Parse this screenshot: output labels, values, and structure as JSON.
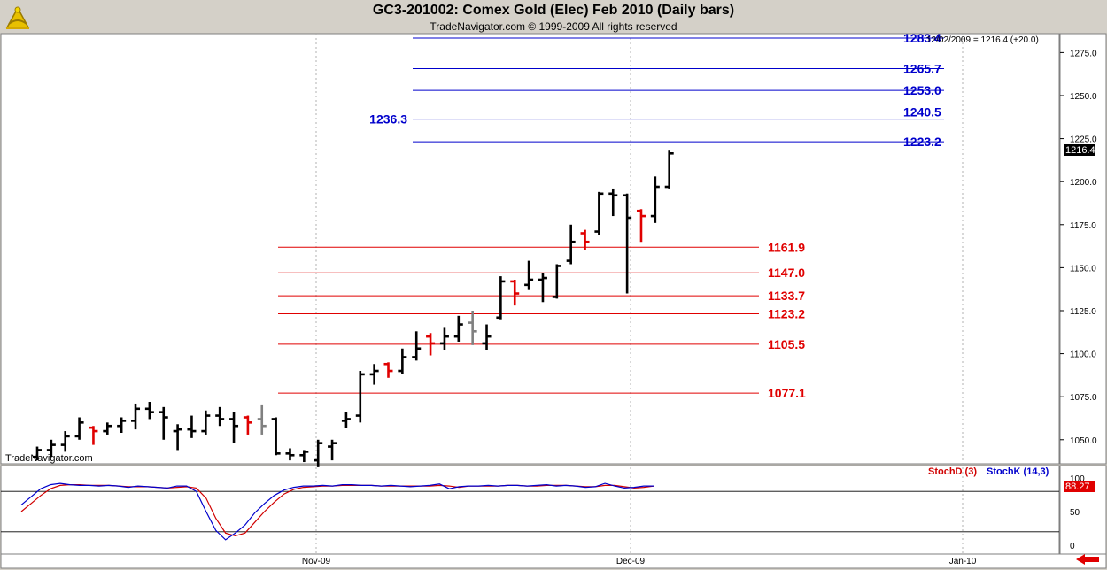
{
  "header": {
    "title": "GC3-201002:  Comex Gold (Elec) Feb 2010  (Daily bars)",
    "subtitle": "TradeNavigator.com © 1999-2009 All rights reserved"
  },
  "watermark": "TradeNavigator.com",
  "last_bar_info": "12/02/2009 = 1216.4 (+20.0)",
  "last_price_tag": "1216.4",
  "stoch": {
    "legend_d": "StochD (3)",
    "legend_k": "StochK (14,3)",
    "value_tag": "88.27",
    "levels": [
      80,
      20
    ],
    "y_ticks": [
      "100",
      "50",
      "0"
    ],
    "color_d": "#d00000",
    "color_k": "#0000cc"
  },
  "icons": {
    "logo": "sextant-icon",
    "scroll": "arrow-left-icon"
  },
  "chart_data": {
    "type": "bar",
    "subtype": "ohlc-daily",
    "title": "GC3-201002:  Comex Gold (Elec) Feb 2010  (Daily bars)",
    "x_labels": [
      "Nov-09",
      "Dec-09",
      "Jan-10"
    ],
    "y_ticks": [
      1050,
      1075,
      1100,
      1125,
      1150,
      1175,
      1200,
      1225,
      1250,
      1275
    ],
    "ylim": [
      1036,
      1286
    ],
    "last_close": 1216.4,
    "resistance_levels": [
      {
        "value": 1283.4,
        "label": "1283.4"
      },
      {
        "value": 1265.7,
        "label": "1265.7"
      },
      {
        "value": 1253.0,
        "label": "1253.0"
      },
      {
        "value": 1240.5,
        "label": "1240.5"
      },
      {
        "value": 1236.3,
        "label": "1236.3"
      },
      {
        "value": 1223.2,
        "label": "1223.2"
      }
    ],
    "support_levels": [
      {
        "value": 1161.9,
        "label": "1161.9"
      },
      {
        "value": 1147.0,
        "label": "1147.0"
      },
      {
        "value": 1133.7,
        "label": "1133.7"
      },
      {
        "value": 1123.2,
        "label": "1123.2"
      },
      {
        "value": 1105.5,
        "label": "1105.5"
      },
      {
        "value": 1077.1,
        "label": "1077.1"
      }
    ],
    "bars": [
      {
        "o": 1040,
        "h": 1046,
        "l": 1038,
        "c": 1044,
        "col": "black"
      },
      {
        "o": 1044,
        "h": 1050,
        "l": 1040,
        "c": 1047,
        "col": "black"
      },
      {
        "o": 1047,
        "h": 1055,
        "l": 1043,
        "c": 1052,
        "col": "black"
      },
      {
        "o": 1052,
        "h": 1063,
        "l": 1050,
        "c": 1060,
        "col": "black"
      },
      {
        "o": 1057,
        "h": 1058,
        "l": 1047,
        "c": 1055,
        "col": "red"
      },
      {
        "o": 1055,
        "h": 1060,
        "l": 1053,
        "c": 1058,
        "col": "black"
      },
      {
        "o": 1058,
        "h": 1063,
        "l": 1054,
        "c": 1061,
        "col": "black"
      },
      {
        "o": 1061,
        "h": 1071,
        "l": 1056,
        "c": 1068,
        "col": "black"
      },
      {
        "o": 1068,
        "h": 1072,
        "l": 1062,
        "c": 1066,
        "col": "black"
      },
      {
        "o": 1066,
        "h": 1069,
        "l": 1050,
        "c": 1063,
        "col": "black"
      },
      {
        "o": 1055,
        "h": 1059,
        "l": 1044,
        "c": 1056,
        "col": "black"
      },
      {
        "o": 1056,
        "h": 1064,
        "l": 1051,
        "c": 1055,
        "col": "black"
      },
      {
        "o": 1055,
        "h": 1067,
        "l": 1053,
        "c": 1064,
        "col": "black"
      },
      {
        "o": 1064,
        "h": 1069,
        "l": 1058,
        "c": 1062,
        "col": "black"
      },
      {
        "o": 1062,
        "h": 1066,
        "l": 1048,
        "c": 1058,
        "col": "black"
      },
      {
        "o": 1063,
        "h": 1064,
        "l": 1053,
        "c": 1060,
        "col": "red"
      },
      {
        "o": 1062,
        "h": 1070,
        "l": 1053,
        "c": 1058,
        "col": "gray"
      },
      {
        "o": 1062,
        "h": 1063,
        "l": 1041,
        "c": 1042,
        "col": "black"
      },
      {
        "o": 1042,
        "h": 1045,
        "l": 1038,
        "c": 1041,
        "col": "black"
      },
      {
        "o": 1041,
        "h": 1044,
        "l": 1037,
        "c": 1043,
        "col": "black"
      },
      {
        "o": 1038,
        "h": 1050,
        "l": 1034,
        "c": 1048,
        "col": "black"
      },
      {
        "o": 1046,
        "h": 1050,
        "l": 1038,
        "c": 1048,
        "col": "black"
      },
      {
        "o": 1061,
        "h": 1066,
        "l": 1057,
        "c": 1062,
        "col": "black"
      },
      {
        "o": 1064,
        "h": 1090,
        "l": 1060,
        "c": 1088,
        "col": "black"
      },
      {
        "o": 1088,
        "h": 1094,
        "l": 1082,
        "c": 1090,
        "col": "black"
      },
      {
        "o": 1094,
        "h": 1095,
        "l": 1086,
        "c": 1090,
        "col": "red"
      },
      {
        "o": 1090,
        "h": 1103,
        "l": 1088,
        "c": 1098,
        "col": "black"
      },
      {
        "o": 1098,
        "h": 1113,
        "l": 1096,
        "c": 1103,
        "col": "black"
      },
      {
        "o": 1110,
        "h": 1112,
        "l": 1099,
        "c": 1106,
        "col": "red"
      },
      {
        "o": 1106,
        "h": 1115,
        "l": 1102,
        "c": 1110,
        "col": "black"
      },
      {
        "o": 1110,
        "h": 1122,
        "l": 1107,
        "c": 1117,
        "col": "black"
      },
      {
        "o": 1118,
        "h": 1125,
        "l": 1105,
        "c": 1113,
        "col": "gray"
      },
      {
        "o": 1106,
        "h": 1117,
        "l": 1102,
        "c": 1110,
        "col": "black"
      },
      {
        "o": 1121,
        "h": 1145,
        "l": 1120,
        "c": 1142,
        "col": "black"
      },
      {
        "o": 1142,
        "h": 1143,
        "l": 1128,
        "c": 1135,
        "col": "red"
      },
      {
        "o": 1140,
        "h": 1154,
        "l": 1137,
        "c": 1143,
        "col": "black"
      },
      {
        "o": 1143,
        "h": 1147,
        "l": 1130,
        "c": 1144,
        "col": "black"
      },
      {
        "o": 1133,
        "h": 1152,
        "l": 1132,
        "c": 1151,
        "col": "black"
      },
      {
        "o": 1154,
        "h": 1175,
        "l": 1152,
        "c": 1165,
        "col": "black"
      },
      {
        "o": 1170,
        "h": 1172,
        "l": 1160,
        "c": 1165,
        "col": "red"
      },
      {
        "o": 1171,
        "h": 1194,
        "l": 1169,
        "c": 1193,
        "col": "black"
      },
      {
        "o": 1193,
        "h": 1196,
        "l": 1180,
        "c": 1192,
        "col": "black"
      },
      {
        "o": 1192,
        "h": 1193,
        "l": 1135,
        "c": 1179,
        "col": "black"
      },
      {
        "o": 1183,
        "h": 1184,
        "l": 1165,
        "c": 1180,
        "col": "red"
      },
      {
        "o": 1180,
        "h": 1203,
        "l": 1176,
        "c": 1197,
        "col": "black"
      },
      {
        "o": 1197,
        "h": 1218,
        "l": 1196,
        "c": 1216.4,
        "col": "black"
      }
    ]
  }
}
